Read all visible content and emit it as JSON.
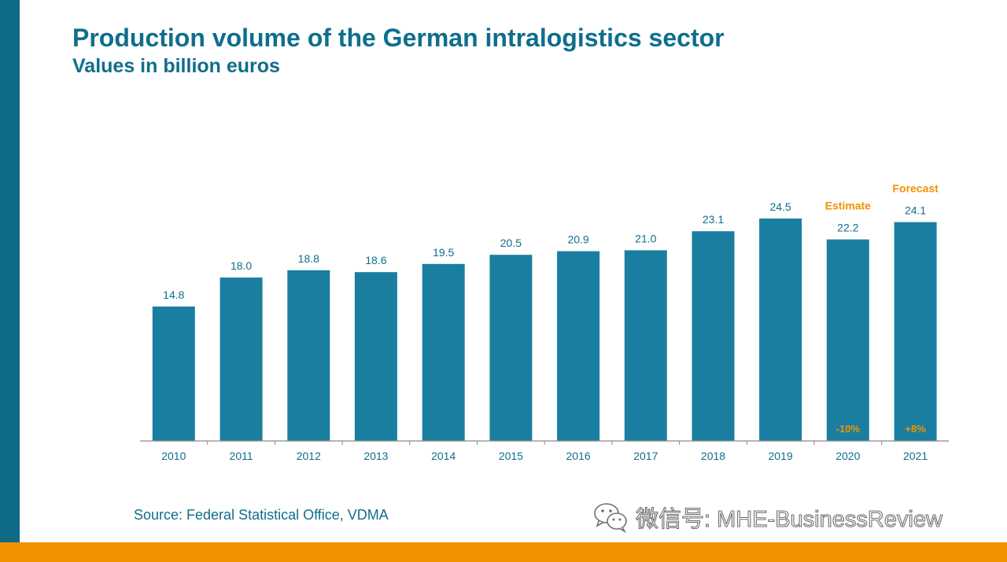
{
  "title": "Production volume of the German intralogistics sector",
  "subtitle": "Values in billion euros",
  "source": "Source: Federal Statistical Office, VDMA",
  "watermark": {
    "icon": "wechat-icon",
    "text": "微信号: MHE-BusinessReview"
  },
  "colors": {
    "bar": "#1a7ea1",
    "title": "#0f6e8c",
    "accent": "#f29200",
    "left_band": "#0e6a87"
  },
  "chart_data": {
    "type": "bar",
    "title": "Production volume of the German intralogistics sector",
    "ylabel": "Values in billion euros",
    "xlabel": "",
    "categories": [
      "2010",
      "2011",
      "2012",
      "2013",
      "2014",
      "2015",
      "2016",
      "2017",
      "2018",
      "2019",
      "2020",
      "2021"
    ],
    "values": [
      14.8,
      18.0,
      18.8,
      18.6,
      19.5,
      20.5,
      20.9,
      21.0,
      23.1,
      24.5,
      22.2,
      24.1
    ],
    "labels": [
      "14.8",
      "18.0",
      "18.8",
      "18.6",
      "19.5",
      "20.5",
      "20.9",
      "21.0",
      "23.1",
      "24.5",
      "22.2",
      "24.1"
    ],
    "ylim": [
      0,
      24.5
    ],
    "grid": false,
    "annotations": [
      {
        "category": "2020",
        "top_text": "Estimate",
        "inside_text": "-10%"
      },
      {
        "category": "2021",
        "top_text": "Forecast",
        "inside_text": "+8%"
      }
    ]
  }
}
